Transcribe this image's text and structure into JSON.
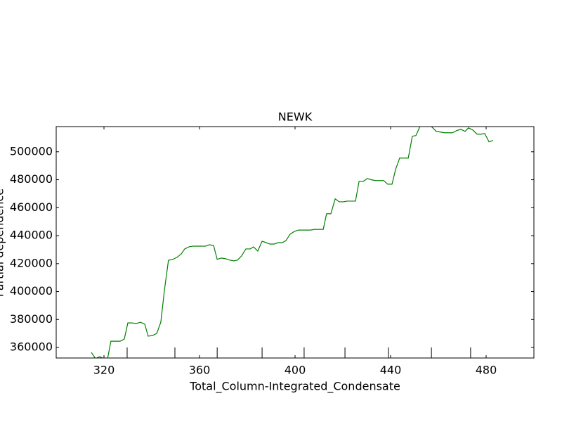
{
  "chart_data": {
    "type": "line",
    "title": "NEWK",
    "xlabel": "Total_Column-Integrated_Condensate",
    "ylabel": "Partial dependence",
    "x": [
      314.7,
      316.5,
      318.2,
      320,
      321.5,
      322.9,
      325,
      326.8,
      328.5,
      330,
      331.8,
      333.5,
      335.3,
      337.1,
      338.5,
      340.3,
      342.1,
      343.8,
      345.3,
      347,
      348.8,
      350.6,
      352.4,
      353.8,
      355.6,
      357.4,
      359.1,
      360.9,
      362.4,
      364.1,
      365.9,
      367.4,
      369.1,
      370.9,
      372.6,
      374.4,
      375.9,
      377.6,
      379.4,
      381.2,
      382.6,
      384.4,
      386.2,
      387.9,
      389.4,
      391.2,
      392.9,
      394.7,
      396.2,
      397.9,
      399.7,
      401.5,
      403.2,
      404.7,
      406.5,
      408.2,
      410,
      411.8,
      413.2,
      415,
      416.8,
      418.5,
      420.3,
      421.8,
      423.5,
      425.3,
      426.8,
      428.5,
      430.3,
      432.1,
      433.8,
      435.3,
      437.1,
      438.8,
      440.6,
      442.1,
      443.8,
      445.6,
      447.4,
      449.1,
      450.6,
      452.4,
      454.1,
      455.9,
      457.4,
      459.1,
      460.9,
      462.6,
      464.4,
      465.9,
      467.6,
      469.4,
      471.2,
      472.6,
      474.4,
      476.2,
      477.9,
      479.4,
      481.2,
      482.9
    ],
    "series": [
      {
        "name": "Partial dependence",
        "color": "#008000",
        "values": [
          356500,
          352000,
          353500,
          352000,
          352000,
          364500,
          364500,
          364500,
          366000,
          377600,
          377600,
          377100,
          378100,
          376600,
          368100,
          368600,
          370100,
          378100,
          400800,
          422400,
          423000,
          424500,
          427000,
          430500,
          432000,
          432500,
          432500,
          432500,
          432500,
          433500,
          433000,
          423000,
          424000,
          423500,
          422500,
          422000,
          422500,
          425500,
          430500,
          430500,
          432000,
          429000,
          436000,
          435000,
          434000,
          434000,
          435000,
          435000,
          436500,
          441000,
          443000,
          444000,
          444000,
          444000,
          444000,
          444500,
          444500,
          444500,
          455700,
          455700,
          466300,
          464200,
          464200,
          464700,
          464700,
          464700,
          478800,
          478800,
          480900,
          479900,
          479400,
          479400,
          479400,
          476800,
          476800,
          487400,
          495500,
          495500,
          495500,
          511100,
          511600,
          518500,
          519100,
          519100,
          517600,
          514600,
          514100,
          513600,
          513600,
          513600,
          515100,
          516100,
          514600,
          517100,
          515600,
          512600,
          512600,
          513100,
          507100,
          508100
        ]
      }
    ],
    "deciles": [
      329.7,
      349.7,
      367.4,
      386.2,
      403.8,
      420.9,
      439.1,
      457.1,
      473.5
    ],
    "xlim": [
      300,
      500
    ],
    "xticks": [
      320,
      360,
      400,
      440,
      480
    ],
    "ylim": [
      352500,
      518000
    ],
    "yticks": [
      360000,
      380000,
      400000,
      420000,
      440000,
      460000,
      480000,
      500000
    ]
  }
}
